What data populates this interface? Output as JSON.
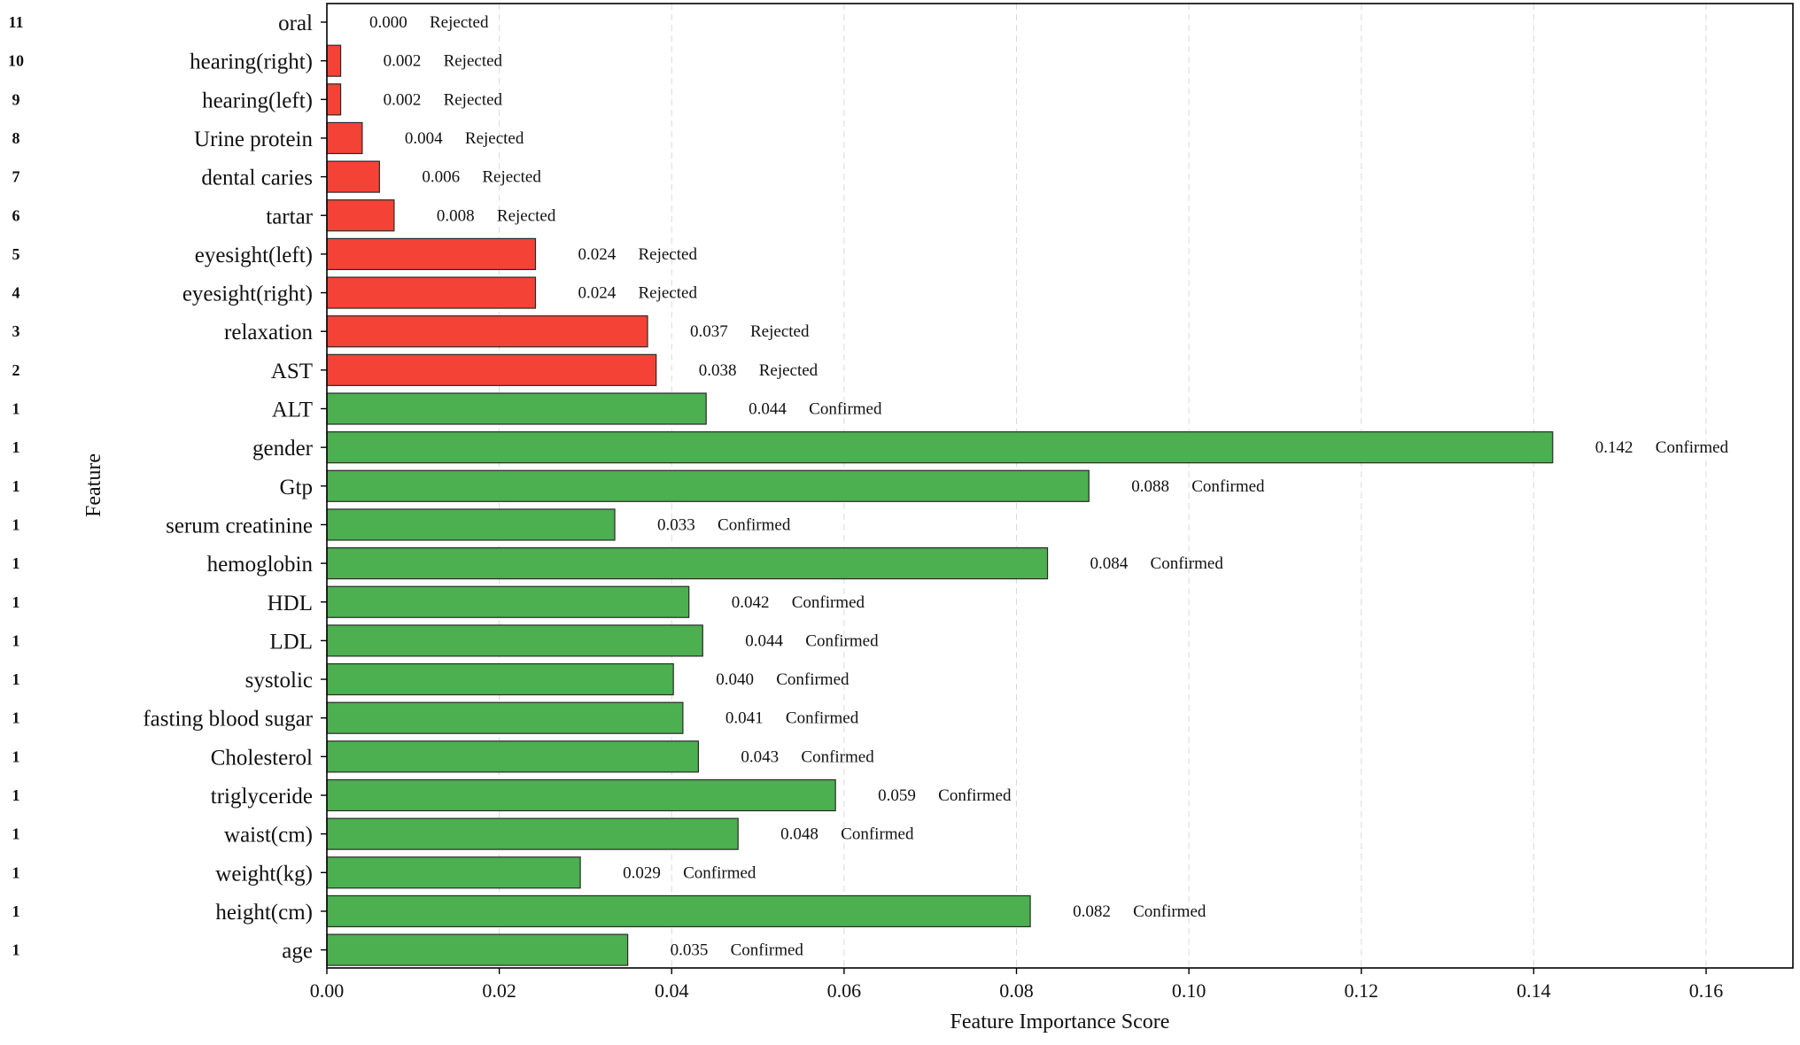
{
  "chart_data": {
    "type": "bar",
    "orientation": "horizontal",
    "xlabel": "Feature Importance Score",
    "ylabel": "Feature",
    "xlim": [
      0,
      0.17
    ],
    "x_ticks": [
      "0.00",
      "0.02",
      "0.04",
      "0.06",
      "0.08",
      "0.10",
      "0.12",
      "0.14",
      "0.16"
    ],
    "grid": "vertical dashed",
    "colors": {
      "Confirmed": "#4caf50",
      "Rejected": "#f44336",
      "edge": "#2a2a2a"
    },
    "bars": [
      {
        "feature": "oral",
        "rank": "11",
        "value": 0.0,
        "value_label": "0.000",
        "status": "Rejected"
      },
      {
        "feature": "hearing(right)",
        "rank": "10",
        "value": 0.0016,
        "value_label": "0.002",
        "status": "Rejected"
      },
      {
        "feature": "hearing(left)",
        "rank": "9",
        "value": 0.0016,
        "value_label": "0.002",
        "status": "Rejected"
      },
      {
        "feature": "Urine protein",
        "rank": "8",
        "value": 0.0041,
        "value_label": "0.004",
        "status": "Rejected"
      },
      {
        "feature": "dental caries",
        "rank": "7",
        "value": 0.0061,
        "value_label": "0.006",
        "status": "Rejected"
      },
      {
        "feature": "tartar",
        "rank": "6",
        "value": 0.0078,
        "value_label": "0.008",
        "status": "Rejected"
      },
      {
        "feature": "eyesight(left)",
        "rank": "5",
        "value": 0.0242,
        "value_label": "0.024",
        "status": "Rejected"
      },
      {
        "feature": "eyesight(right)",
        "rank": "4",
        "value": 0.0242,
        "value_label": "0.024",
        "status": "Rejected"
      },
      {
        "feature": "relaxation",
        "rank": "3",
        "value": 0.0372,
        "value_label": "0.037",
        "status": "Rejected"
      },
      {
        "feature": "AST",
        "rank": "2",
        "value": 0.0382,
        "value_label": "0.038",
        "status": "Rejected"
      },
      {
        "feature": "ALT",
        "rank": "1",
        "value": 0.044,
        "value_label": "0.044",
        "status": "Confirmed"
      },
      {
        "feature": "gender",
        "rank": "1",
        "value": 0.1422,
        "value_label": "0.142",
        "status": "Confirmed"
      },
      {
        "feature": "Gtp",
        "rank": "1",
        "value": 0.0884,
        "value_label": "0.088",
        "status": "Confirmed"
      },
      {
        "feature": "serum creatinine",
        "rank": "1",
        "value": 0.0334,
        "value_label": "0.033",
        "status": "Confirmed"
      },
      {
        "feature": "hemoglobin",
        "rank": "1",
        "value": 0.0836,
        "value_label": "0.084",
        "status": "Confirmed"
      },
      {
        "feature": "HDL",
        "rank": "1",
        "value": 0.042,
        "value_label": "0.042",
        "status": "Confirmed"
      },
      {
        "feature": "LDL",
        "rank": "1",
        "value": 0.0436,
        "value_label": "0.044",
        "status": "Confirmed"
      },
      {
        "feature": "systolic",
        "rank": "1",
        "value": 0.0402,
        "value_label": "0.040",
        "status": "Confirmed"
      },
      {
        "feature": "fasting blood sugar",
        "rank": "1",
        "value": 0.0413,
        "value_label": "0.041",
        "status": "Confirmed"
      },
      {
        "feature": "Cholesterol",
        "rank": "1",
        "value": 0.0431,
        "value_label": "0.043",
        "status": "Confirmed"
      },
      {
        "feature": "triglyceride",
        "rank": "1",
        "value": 0.059,
        "value_label": "0.059",
        "status": "Confirmed"
      },
      {
        "feature": "waist(cm)",
        "rank": "1",
        "value": 0.0477,
        "value_label": "0.048",
        "status": "Confirmed"
      },
      {
        "feature": "weight(kg)",
        "rank": "1",
        "value": 0.0294,
        "value_label": "0.029",
        "status": "Confirmed"
      },
      {
        "feature": "height(cm)",
        "rank": "1",
        "value": 0.0816,
        "value_label": "0.082",
        "status": "Confirmed"
      },
      {
        "feature": "age",
        "rank": "1",
        "value": 0.0349,
        "value_label": "0.035",
        "status": "Confirmed"
      }
    ]
  }
}
